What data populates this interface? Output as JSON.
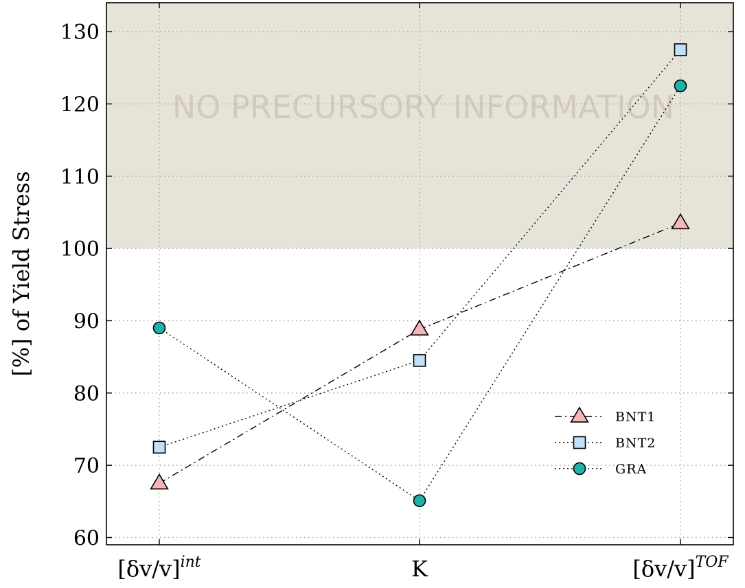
{
  "chart_data": {
    "type": "line",
    "categories": [
      "[δv/v]^int",
      "K",
      "[δv/v]^TOF"
    ],
    "category_labels": [
      {
        "base": "[δv/v]",
        "sup": "int"
      },
      {
        "base": "K",
        "sup": ""
      },
      {
        "base": "[δv/v]",
        "sup": "TOF"
      }
    ],
    "ylabel": "[%] of Yield Stress",
    "ylim": [
      59,
      134
    ],
    "yticks": [
      60,
      70,
      80,
      90,
      100,
      110,
      120,
      130
    ],
    "grid": true,
    "shaded_region": {
      "from": 100,
      "to": 134,
      "label": "NO PRECURSORY INFORMATION",
      "color": "#e6e3d9"
    },
    "legend_position": "bottom-right",
    "series": [
      {
        "name": "BNT1",
        "values": [
          67.5,
          88.8,
          103.5
        ],
        "marker": "triangle",
        "line_style": "dashdot",
        "color": "#f6b6b9"
      },
      {
        "name": "BNT2",
        "values": [
          72.5,
          84.5,
          127.5
        ],
        "marker": "square",
        "line_style": "dotted",
        "color": "#bfe2f8"
      },
      {
        "name": "GRA",
        "values": [
          89.0,
          65.1,
          122.5
        ],
        "marker": "circle",
        "line_style": "dotted",
        "color": "#1fb3a8"
      }
    ]
  }
}
